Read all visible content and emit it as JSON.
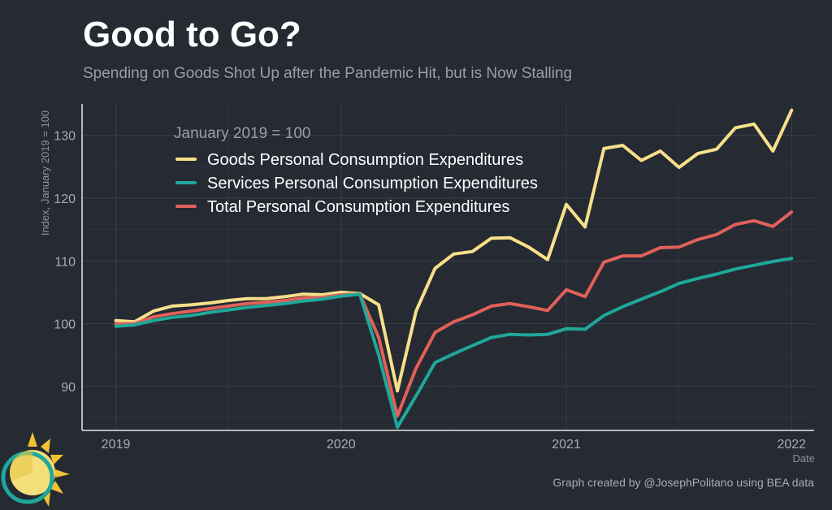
{
  "title": "Good to Go?",
  "subtitle": "Spending on Goods Shot Up after the Pandemic Hit, but is Now Stalling",
  "credit": "Graph created by @JosephPolitano using BEA data",
  "chart_data": {
    "type": "line",
    "ylabel": "Index, January 2019 = 100",
    "xlabel": "Date",
    "legend_title": "January 2019 = 100",
    "legend_position": "top-left inside plot",
    "grid": true,
    "ylim": [
      83,
      135
    ],
    "yticks": [
      90,
      100,
      110,
      120,
      130
    ],
    "xlim": [
      2018.85,
      2022.1
    ],
    "xticks": [
      2019,
      2020,
      2021,
      2022
    ],
    "xtick_labels": [
      "2019",
      "2020",
      "2021",
      "2022"
    ],
    "colors": {
      "background": "#252a33",
      "grid": "#3a404a",
      "axis": "#e8e8e8",
      "goods": "#f7e08a",
      "services": "#1fa89a",
      "total": "#e0605a"
    },
    "x": [
      2019.0,
      2019.083,
      2019.167,
      2019.25,
      2019.333,
      2019.417,
      2019.5,
      2019.583,
      2019.667,
      2019.75,
      2019.833,
      2019.917,
      2020.0,
      2020.083,
      2020.167,
      2020.25,
      2020.333,
      2020.417,
      2020.5,
      2020.583,
      2020.667,
      2020.75,
      2020.833,
      2020.917,
      2021.0,
      2021.083,
      2021.167,
      2021.25,
      2021.333,
      2021.417,
      2021.5,
      2021.583,
      2021.667,
      2021.75,
      2021.833,
      2021.917,
      2022.0
    ],
    "series": [
      {
        "name": "Goods Personal Consumption Expenditures",
        "color": "#f7e08a",
        "values": [
          100.5,
          100.3,
          102.0,
          102.8,
          103.0,
          103.3,
          103.7,
          104.0,
          104.0,
          104.3,
          104.7,
          104.6,
          105.0,
          104.8,
          103.0,
          89.3,
          102.0,
          108.8,
          111.1,
          111.5,
          113.6,
          113.7,
          112.2,
          110.2,
          119.0,
          115.4,
          127.9,
          128.4,
          126.0,
          127.5,
          124.9,
          127.1,
          127.8,
          131.2,
          131.8,
          127.5,
          134.0
        ]
      },
      {
        "name": "Services Personal Consumption Expenditures",
        "color": "#1fa89a",
        "values": [
          99.6,
          99.8,
          100.5,
          101.0,
          101.3,
          101.8,
          102.2,
          102.6,
          102.9,
          103.2,
          103.6,
          103.9,
          104.4,
          104.7,
          95.0,
          83.5,
          88.5,
          93.8,
          95.2,
          96.5,
          97.8,
          98.3,
          98.2,
          98.3,
          99.2,
          99.1,
          101.3,
          102.7,
          103.9,
          105.1,
          106.4,
          107.2,
          107.9,
          108.7,
          109.3,
          109.9,
          110.4
        ]
      },
      {
        "name": "Total Personal Consumption Expenditures",
        "color": "#e0605a",
        "values": [
          100.0,
          100.0,
          101.1,
          101.6,
          102.0,
          102.4,
          102.8,
          103.2,
          103.4,
          103.7,
          104.1,
          104.2,
          104.6,
          104.7,
          97.8,
          85.3,
          92.9,
          98.6,
          100.3,
          101.4,
          102.8,
          103.2,
          102.7,
          102.1,
          105.4,
          104.3,
          109.8,
          110.8,
          110.8,
          112.1,
          112.2,
          113.4,
          114.2,
          115.8,
          116.4,
          115.5,
          117.8
        ]
      }
    ]
  }
}
